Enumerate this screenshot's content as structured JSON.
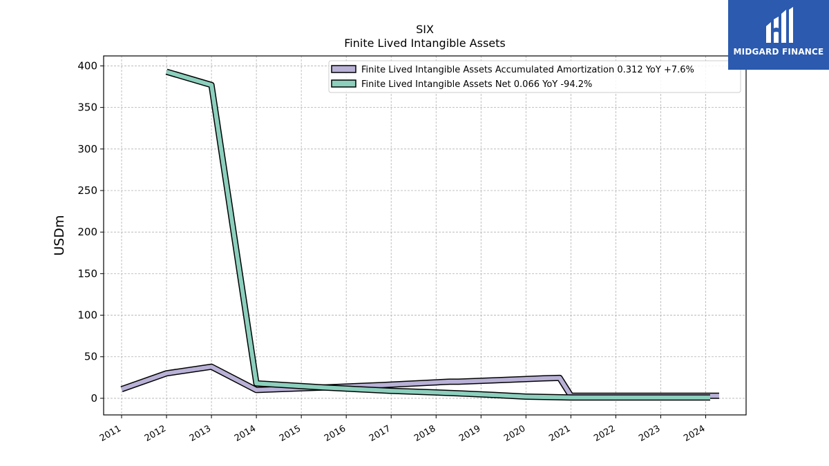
{
  "chart_data": {
    "type": "line",
    "title": "SIX",
    "subtitle": "Finite Lived Intangible Assets",
    "xlabel": "",
    "ylabel": "USDm",
    "ylim": [
      -20,
      412
    ],
    "xlim": [
      2010.6,
      2024.9
    ],
    "yticks": [
      0,
      50,
      100,
      150,
      200,
      250,
      300,
      350,
      400
    ],
    "xticks": [
      "2011",
      "2012",
      "2013",
      "2014",
      "2015",
      "2016",
      "2017",
      "2018",
      "2019",
      "2020",
      "2021",
      "2022",
      "2023",
      "2024"
    ],
    "grid": true,
    "legend_position": "top-right",
    "series": [
      {
        "name": "Finite Lived Intangible Assets Accumulated Amortization",
        "legend_label": "Finite Lived Intangible Assets Accumulated Amortization  0.312 YoY +7.6%",
        "color": "#b9b1d6",
        "points": [
          [
            2011.0,
            11
          ],
          [
            2012.0,
            30
          ],
          [
            2013.0,
            38
          ],
          [
            2014.0,
            10
          ],
          [
            2015.5,
            13
          ],
          [
            2016.8,
            16
          ],
          [
            2018.3,
            20
          ],
          [
            2018.5,
            20
          ],
          [
            2019.5,
            22
          ],
          [
            2020.4,
            24
          ],
          [
            2020.75,
            24.5
          ],
          [
            2021.0,
            3
          ],
          [
            2022.0,
            3
          ],
          [
            2023.0,
            3
          ],
          [
            2024.3,
            3
          ]
        ]
      },
      {
        "name": "Finite Lived Intangible Assets Net",
        "legend_label": "Finite Lived Intangible Assets Net  0.066 YoY -94.2%",
        "color": "#8ccfbd",
        "points": [
          [
            2012.0,
            393
          ],
          [
            2013.0,
            377
          ],
          [
            2014.0,
            18
          ],
          [
            2015.5,
            13
          ],
          [
            2017.0,
            9
          ],
          [
            2018.5,
            6
          ],
          [
            2019.3,
            4
          ],
          [
            2020.0,
            2
          ],
          [
            2021.0,
            1
          ],
          [
            2022.0,
            1
          ],
          [
            2023.0,
            1
          ],
          [
            2024.1,
            1
          ]
        ]
      }
    ]
  },
  "logo": {
    "text": "MIDGARD FINANCE",
    "background": "#2b5aae"
  }
}
